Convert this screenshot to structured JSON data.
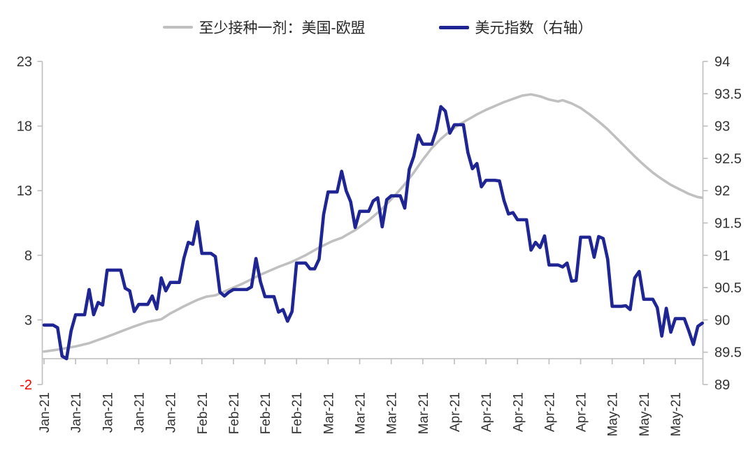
{
  "legend": {
    "items": [
      {
        "label": "至少接种一剂：美国-欧盟",
        "color": "#C0C0C0"
      },
      {
        "label": "美元指数（右轴）",
        "color": "#1F2693"
      }
    ]
  },
  "colors": {
    "axis_line": "#C0C0C0",
    "tick_label": "#333333",
    "negative_tick_label": "#FF0000",
    "background": "#FFFFFF"
  },
  "chart_data": {
    "type": "line",
    "title": "",
    "x_unit": "days since first point (weekly ticks)",
    "x_axis": {
      "tick_labels": [
        "Jan-21",
        "Jan-21",
        "Jan-21",
        "Jan-21",
        "Jan-21",
        "Feb-21",
        "Feb-21",
        "Feb-21",
        "Feb-21",
        "Mar-21",
        "Mar-21",
        "Mar-21",
        "Mar-21",
        "Apr-21",
        "Apr-21",
        "Apr-21",
        "Apr-21",
        "Apr-21",
        "May-21",
        "May-21",
        "May-21"
      ],
      "tick_interval_days": 7
    },
    "left_axis": {
      "tick_labels": [
        "23",
        "18",
        "13",
        "8",
        "3",
        "-2"
      ],
      "range": [
        -2,
        23
      ],
      "negative_label_color": "#FF0000"
    },
    "right_axis": {
      "tick_labels": [
        "94",
        "93.5",
        "93",
        "92.5",
        "92",
        "91.5",
        "91",
        "90.5",
        "90",
        "89.5",
        "89"
      ],
      "range": [
        89,
        94
      ]
    },
    "series": [
      {
        "name": "至少接种一剂：美国-欧盟",
        "axis": "left",
        "color": "#C0C0C0",
        "stroke_width": 3.6,
        "points_day_value": [
          [
            0,
            0.55
          ],
          [
            3,
            0.7
          ],
          [
            7,
            0.95
          ],
          [
            10,
            1.2
          ],
          [
            14,
            1.7
          ],
          [
            17,
            2.1
          ],
          [
            20,
            2.5
          ],
          [
            23,
            2.85
          ],
          [
            26,
            3.05
          ],
          [
            28,
            3.5
          ],
          [
            31,
            4.05
          ],
          [
            34,
            4.55
          ],
          [
            36,
            4.8
          ],
          [
            38,
            4.9
          ],
          [
            41,
            5.35
          ],
          [
            44,
            5.8
          ],
          [
            48,
            6.5
          ],
          [
            52,
            7.1
          ],
          [
            55,
            7.5
          ],
          [
            58,
            8.0
          ],
          [
            61,
            8.6
          ],
          [
            64,
            9.1
          ],
          [
            66,
            9.35
          ],
          [
            69,
            9.95
          ],
          [
            72,
            10.7
          ],
          [
            75,
            11.6
          ],
          [
            78,
            12.7
          ],
          [
            80,
            13.5
          ],
          [
            82,
            14.4
          ],
          [
            84,
            15.4
          ],
          [
            86,
            16.3
          ],
          [
            88,
            17.0
          ],
          [
            90,
            17.6
          ],
          [
            92,
            18.1
          ],
          [
            94,
            18.5
          ],
          [
            96,
            18.9
          ],
          [
            98,
            19.25
          ],
          [
            100,
            19.55
          ],
          [
            102,
            19.85
          ],
          [
            104,
            20.1
          ],
          [
            106,
            20.35
          ],
          [
            108,
            20.45
          ],
          [
            110,
            20.3
          ],
          [
            112,
            20.05
          ],
          [
            114,
            19.9
          ],
          [
            115,
            20.0
          ],
          [
            117,
            19.75
          ],
          [
            119,
            19.4
          ],
          [
            121,
            18.9
          ],
          [
            123,
            18.35
          ],
          [
            125,
            17.75
          ],
          [
            127,
            17.05
          ],
          [
            129,
            16.35
          ],
          [
            131,
            15.65
          ],
          [
            133,
            15.0
          ],
          [
            135,
            14.4
          ],
          [
            137,
            13.9
          ],
          [
            139,
            13.45
          ],
          [
            141,
            13.1
          ],
          [
            143,
            12.75
          ],
          [
            145,
            12.5
          ],
          [
            146,
            12.45
          ]
        ]
      },
      {
        "name": "美元指数（右轴）",
        "axis": "right",
        "color": "#1F2693",
        "stroke_width": 4.6,
        "start_day": 0,
        "daily_values": [
          89.92,
          89.92,
          89.92,
          89.88,
          89.44,
          89.4,
          89.83,
          90.08,
          90.08,
          90.08,
          90.47,
          90.08,
          90.27,
          90.23,
          90.77,
          90.77,
          90.77,
          90.77,
          90.49,
          90.45,
          90.13,
          90.24,
          90.24,
          90.24,
          90.37,
          90.17,
          90.65,
          90.45,
          90.58,
          90.58,
          90.58,
          90.95,
          91.2,
          91.17,
          91.52,
          91.03,
          91.03,
          91.03,
          90.98,
          90.43,
          90.37,
          90.43,
          90.47,
          90.47,
          90.47,
          90.47,
          90.51,
          90.95,
          90.59,
          90.36,
          90.36,
          90.36,
          90.12,
          90.16,
          89.98,
          90.13,
          90.88,
          90.88,
          90.88,
          90.79,
          90.79,
          90.94,
          91.63,
          91.98,
          91.98,
          91.98,
          92.3,
          92.0,
          91.83,
          91.43,
          91.68,
          91.68,
          91.68,
          91.84,
          91.89,
          91.44,
          91.86,
          91.92,
          91.92,
          91.92,
          91.73,
          92.33,
          92.53,
          92.86,
          92.72,
          92.72,
          92.72,
          92.94,
          93.3,
          93.23,
          92.89,
          93.02,
          93.02,
          93.02,
          92.59,
          92.34,
          92.42,
          92.06,
          92.16,
          92.16,
          92.16,
          92.15,
          91.85,
          91.64,
          91.66,
          91.55,
          91.55,
          91.55,
          91.08,
          91.2,
          91.12,
          91.3,
          90.85,
          90.85,
          90.85,
          90.82,
          90.88,
          90.6,
          90.61,
          91.28,
          91.28,
          91.28,
          90.97,
          91.29,
          91.26,
          90.94,
          90.21,
          90.21,
          90.21,
          90.22,
          90.16,
          90.65,
          90.75,
          90.32,
          90.32,
          90.32,
          90.19,
          89.75,
          90.18,
          89.81,
          90.02,
          90.02,
          90.02,
          89.83,
          89.62,
          89.9,
          89.95
        ]
      }
    ],
    "grid": "off",
    "legend_position": "top-center"
  }
}
